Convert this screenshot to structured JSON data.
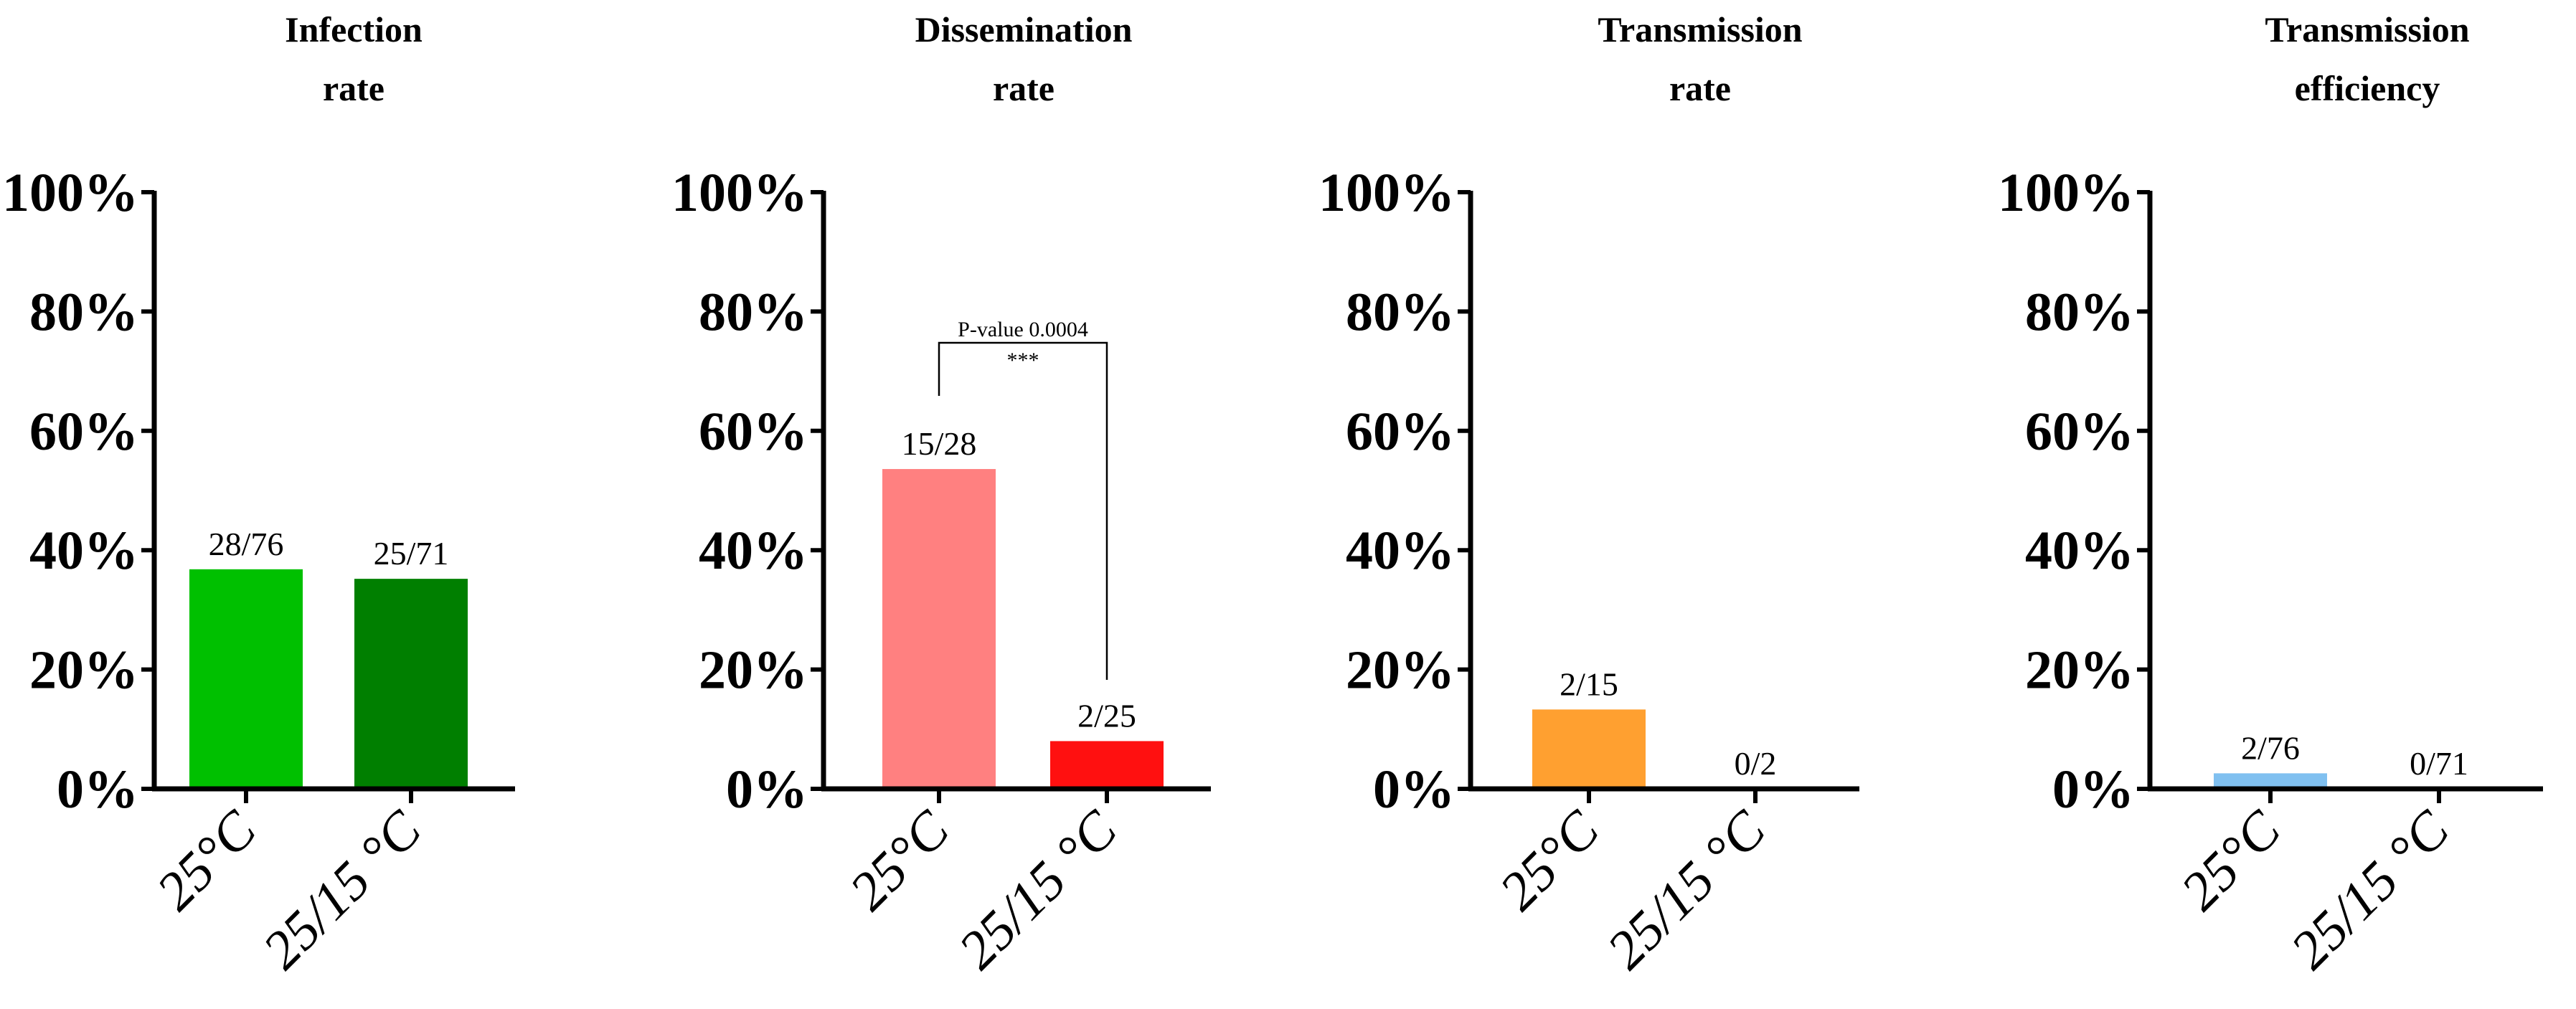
{
  "chart_data": [
    {
      "type": "bar",
      "title": [
        "Infection",
        "rate"
      ],
      "categories": [
        "25°C",
        "25/15 °C"
      ],
      "values": [
        36.8,
        35.2
      ],
      "data_labels": [
        "28/76",
        "25/71"
      ],
      "colors": [
        "#00c000",
        "#007f00"
      ],
      "ylim": [
        0,
        100
      ],
      "yticks": [
        0,
        20,
        40,
        60,
        80,
        100
      ],
      "ytick_labels": [
        "0%",
        "20%",
        "40%",
        "60%",
        "80%",
        "100%"
      ],
      "grid": false
    },
    {
      "type": "bar",
      "title": [
        "Dissemination",
        "rate"
      ],
      "categories": [
        "25°C",
        "25/15 °C"
      ],
      "values": [
        53.6,
        8.0
      ],
      "data_labels": [
        "15/28",
        "2/25"
      ],
      "colors": [
        "#ff8080",
        "#ff1010"
      ],
      "ylim": [
        0,
        100
      ],
      "yticks": [
        0,
        20,
        40,
        60,
        80,
        100
      ],
      "ytick_labels": [
        "0%",
        "20%",
        "40%",
        "60%",
        "80%",
        "100%"
      ],
      "grid": false,
      "significance": {
        "label": "P-value 0.0004",
        "stars": "***",
        "between": [
          0,
          1
        ]
      }
    },
    {
      "type": "bar",
      "title": [
        "Transmission",
        "rate"
      ],
      "categories": [
        "25°C",
        "25/15 °C"
      ],
      "values": [
        13.3,
        0
      ],
      "data_labels": [
        "2/15",
        "0/2"
      ],
      "colors": [
        "#ffa030",
        "#ffa030"
      ],
      "ylim": [
        0,
        100
      ],
      "yticks": [
        0,
        20,
        40,
        60,
        80,
        100
      ],
      "ytick_labels": [
        "0%",
        "20%",
        "40%",
        "60%",
        "80%",
        "100%"
      ],
      "grid": false
    },
    {
      "type": "bar",
      "title": [
        "Transmission",
        "efficiency"
      ],
      "categories": [
        "25°C",
        "25/15 °C"
      ],
      "values": [
        2.6,
        0
      ],
      "data_labels": [
        "2/76",
        "0/71"
      ],
      "colors": [
        "#80c0f0",
        "#80c0f0"
      ],
      "ylim": [
        0,
        100
      ],
      "yticks": [
        0,
        20,
        40,
        60,
        80,
        100
      ],
      "ytick_labels": [
        "0%",
        "20%",
        "40%",
        "60%",
        "80%",
        "100%"
      ],
      "grid": false
    }
  ]
}
